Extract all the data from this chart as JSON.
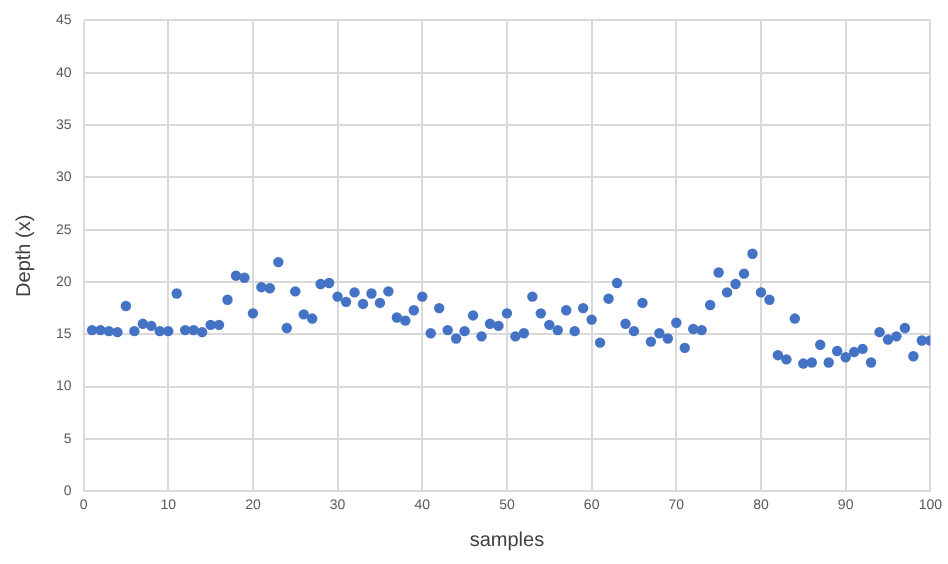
{
  "chart_data": {
    "type": "scatter",
    "xlabel": "samples",
    "ylabel": "Depth (x)",
    "x": [
      1,
      2,
      3,
      4,
      5,
      6,
      7,
      8,
      9,
      10,
      11,
      12,
      13,
      14,
      15,
      16,
      17,
      18,
      19,
      20,
      21,
      22,
      23,
      24,
      25,
      26,
      27,
      28,
      29,
      30,
      31,
      32,
      33,
      34,
      35,
      36,
      37,
      38,
      39,
      40,
      41,
      42,
      43,
      44,
      45,
      46,
      47,
      48,
      49,
      50,
      51,
      52,
      53,
      54,
      55,
      56,
      57,
      58,
      59,
      60,
      61,
      62,
      63,
      64,
      65,
      66,
      67,
      68,
      69,
      70,
      71,
      72,
      73,
      74,
      75,
      76,
      77,
      78,
      79,
      80,
      81,
      82,
      83,
      84,
      85,
      86,
      87,
      88,
      89,
      90,
      91,
      92,
      93,
      94,
      95,
      96,
      97,
      98,
      99,
      100
    ],
    "series": [
      {
        "color": "#4472c4",
        "values": [
          15.4,
          15.4,
          15.3,
          15.2,
          17.7,
          15.3,
          16.0,
          15.8,
          15.3,
          15.3,
          18.9,
          15.4,
          15.4,
          15.2,
          15.9,
          15.9,
          18.3,
          20.6,
          20.4,
          17.0,
          19.5,
          19.4,
          21.9,
          15.6,
          19.1,
          16.9,
          16.5,
          19.8,
          19.9,
          18.6,
          18.1,
          19.0,
          17.9,
          18.9,
          18.0,
          19.1,
          16.6,
          16.3,
          17.3,
          18.6,
          15.1,
          17.5,
          15.4,
          14.6,
          15.3,
          16.8,
          14.8,
          16.0,
          15.8,
          17.0,
          14.8,
          15.1,
          18.6,
          17.0,
          15.9,
          15.4,
          17.3,
          15.3,
          17.5,
          16.4,
          14.2,
          18.4,
          19.9,
          16.0,
          15.3,
          18.0,
          14.3,
          15.1,
          14.6,
          16.1,
          13.7,
          15.5,
          15.4,
          17.8,
          20.9,
          19.0,
          19.8,
          20.8,
          22.7,
          19.0,
          18.3,
          13.0,
          12.6,
          16.5,
          12.2,
          12.3,
          14.0,
          12.3,
          13.4,
          12.8,
          13.3,
          13.6,
          12.3,
          15.2,
          14.5,
          14.8,
          15.6,
          12.9,
          14.4,
          14.4
        ]
      }
    ],
    "xlim": [
      0,
      100
    ],
    "xticks": [
      0,
      10,
      20,
      30,
      40,
      50,
      60,
      70,
      80,
      90,
      100
    ],
    "ylim": [
      0,
      45
    ],
    "yticks": [
      0,
      5,
      10,
      15,
      20,
      25,
      30,
      35,
      40,
      45
    ],
    "grid": true,
    "marker": "circle"
  }
}
